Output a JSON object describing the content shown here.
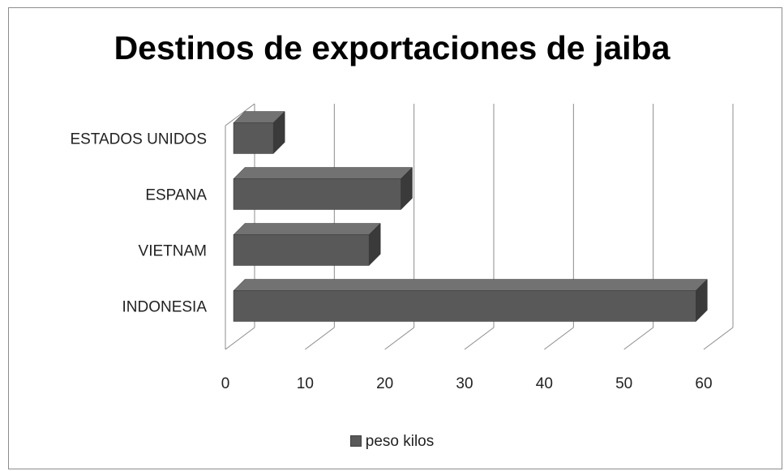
{
  "chart_data": {
    "type": "bar",
    "orientation": "horizontal",
    "title": "Destinos de exportaciones de jaiba",
    "categories": [
      "ESTADOS UNIDOS",
      "ESPANA",
      "VIETNAM",
      "INDONESIA"
    ],
    "series": [
      {
        "name": "peso kilos",
        "values": [
          5,
          21,
          17,
          58
        ]
      }
    ],
    "xlim": [
      0,
      60
    ],
    "xticks": [
      0,
      10,
      20,
      30,
      40,
      50,
      60
    ],
    "grid": true,
    "legend_position": "bottom",
    "bar_color": "#595959",
    "bar_side_color": "#3a3a3a",
    "bar_top_color": "#727272"
  }
}
